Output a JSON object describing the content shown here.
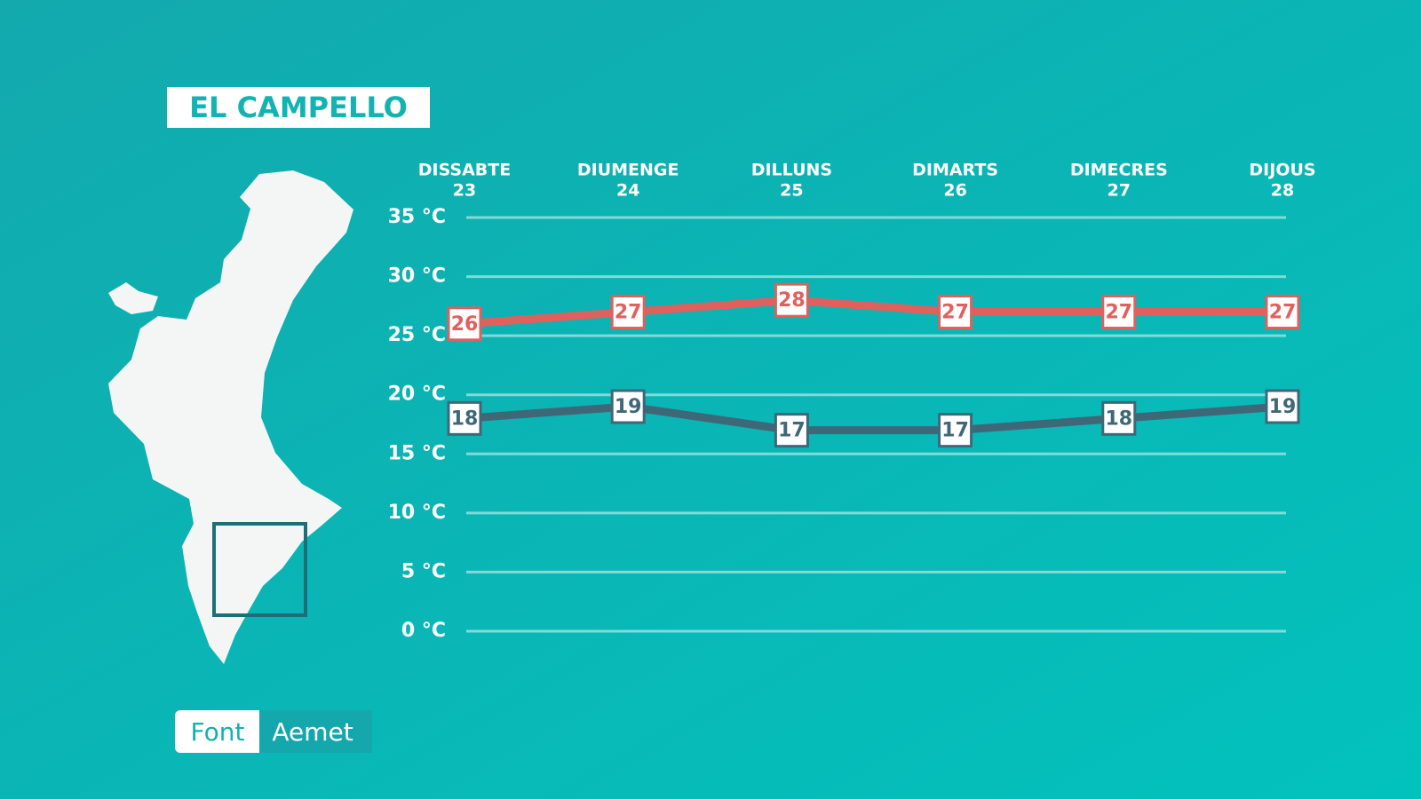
{
  "chart_data": {
    "type": "line",
    "title": "EL CAMPELLO",
    "categories": [
      [
        "DISSABTE",
        "23"
      ],
      [
        "DIUMENGE",
        "24"
      ],
      [
        "DILLUNS",
        "25"
      ],
      [
        "DIMARTS",
        "26"
      ],
      [
        "DIMECRES",
        "27"
      ],
      [
        "DIJOUS",
        "28"
      ]
    ],
    "series": [
      {
        "color": "#e0605e",
        "values": [
          26,
          27,
          28,
          27,
          27,
          27
        ]
      },
      {
        "color": "#3e6878",
        "values": [
          18,
          19,
          17,
          17,
          18,
          19
        ]
      }
    ],
    "ylim": [
      0,
      35
    ],
    "yticks": [
      {
        "value": 0,
        "label": "0 °C"
      },
      {
        "value": 5,
        "label": "5 °C"
      },
      {
        "value": 10,
        "label": "10 °C"
      },
      {
        "value": 15,
        "label": "15 °C"
      },
      {
        "value": 20,
        "label": "20 °C"
      },
      {
        "value": 25,
        "label": "25 °C"
      },
      {
        "value": 30,
        "label": "30 °C"
      },
      {
        "value": 35,
        "label": "35 °C"
      }
    ],
    "grid": true,
    "source": {
      "label": "Font",
      "value": "Aemet"
    }
  }
}
